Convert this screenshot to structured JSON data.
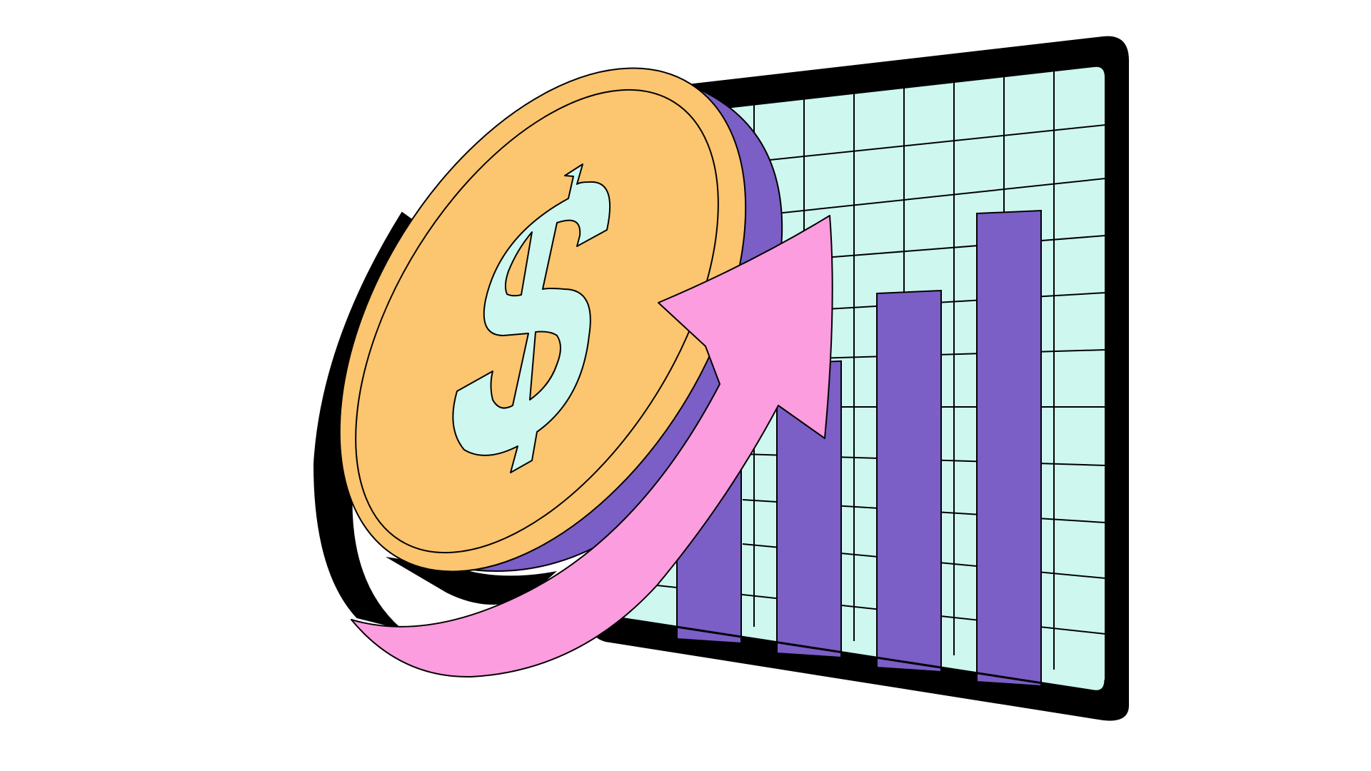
{
  "illustration": {
    "subject": "coin-with-growth-arrow-and-bar-chart",
    "icons": [
      "dollar-coin-icon",
      "growth-arrow-icon",
      "bar-chart-board-icon"
    ],
    "colors": {
      "background": "#ffffff",
      "outline": "#000000",
      "board_frame": "#000000",
      "board_screen": "#cdf7ef",
      "bars": "#7b5ec6",
      "coin_face": "#fcc56f",
      "coin_edge": "#7b5ec6",
      "dollar_sign": "#cdf7ef",
      "arrow": "#fb9ddf"
    },
    "bar_levels": [
      0.45,
      0.62,
      0.8,
      1.0
    ]
  }
}
